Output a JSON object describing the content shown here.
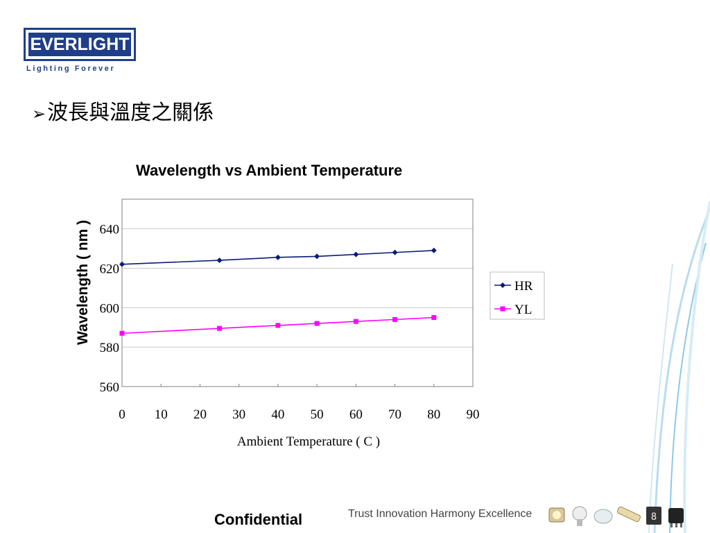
{
  "logo": {
    "brand": "EVERLIGHT",
    "tagline": "Lighting Forever"
  },
  "slide": {
    "bullet": "➢",
    "title": "波長與溫度之關係"
  },
  "chart_data": {
    "type": "line",
    "title": "Wavelength vs Ambient Temperature",
    "xlabel": "Ambient Temperature ( C )",
    "ylabel": "Wavelength ( nm )",
    "xlim": [
      0,
      90
    ],
    "ylim": [
      560,
      655
    ],
    "xticks": [
      0,
      10,
      20,
      30,
      40,
      50,
      60,
      70,
      80,
      90
    ],
    "yticks": [
      560,
      580,
      600,
      620,
      640
    ],
    "grid": "horizontal",
    "legend": "right",
    "series": [
      {
        "name": "HR",
        "color": "#0b1a7a",
        "marker": "diamond",
        "x": [
          0,
          25,
          40,
          50,
          60,
          70,
          80
        ],
        "y": [
          622,
          624,
          625.5,
          626,
          627,
          628,
          629
        ]
      },
      {
        "name": "YL",
        "color": "#ff00ff",
        "marker": "square",
        "x": [
          0,
          25,
          40,
          50,
          60,
          70,
          80
        ],
        "y": [
          587,
          589.5,
          591,
          592,
          593,
          594,
          595
        ]
      }
    ]
  },
  "footer": {
    "confidential": "Confidential",
    "slogan": "Trust Innovation Harmony Excellence"
  },
  "colors": {
    "brand": "#1f3e8a",
    "hr": "#0b1a7a",
    "yl": "#ff00ff"
  }
}
